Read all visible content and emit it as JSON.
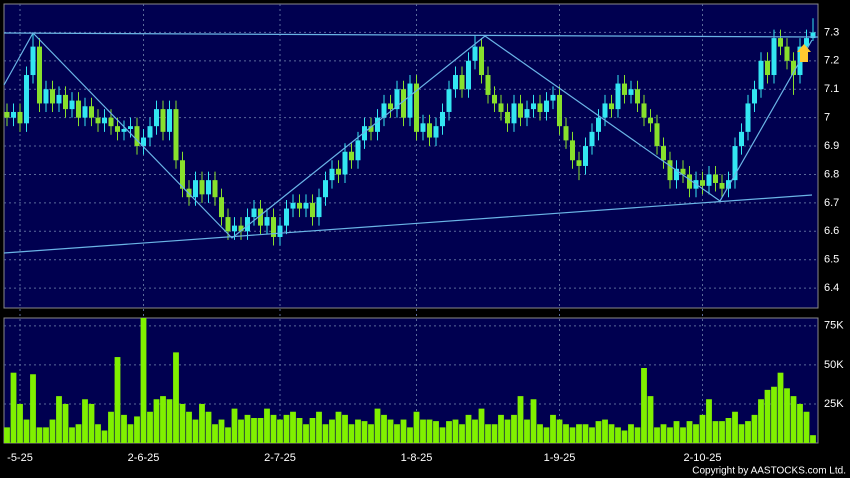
{
  "chart_data": [
    {
      "type": "candlestick",
      "categories": [
        null,
        null,
        "-5-25",
        null,
        null,
        null,
        null,
        null,
        null,
        null,
        null,
        null,
        null,
        null,
        null,
        null,
        null,
        null,
        null,
        null,
        null,
        "2-6-25",
        null,
        null,
        null,
        null,
        null,
        null,
        null,
        null,
        null,
        null,
        null,
        null,
        null,
        null,
        null,
        null,
        null,
        null,
        null,
        null,
        "2-7-25",
        null,
        null,
        null,
        null,
        null,
        null,
        null,
        null,
        null,
        null,
        null,
        null,
        null,
        null,
        null,
        null,
        null,
        null,
        null,
        null,
        "1-8-25",
        null,
        null,
        null,
        null,
        null,
        null,
        null,
        null,
        null,
        null,
        null,
        null,
        null,
        null,
        null,
        null,
        null,
        null,
        null,
        null,
        null,
        "1-9-25",
        null,
        null,
        null,
        null,
        null,
        null,
        null,
        null,
        null,
        null,
        null,
        null,
        null,
        null,
        null,
        null,
        null,
        null,
        null,
        null,
        null,
        "2-10-25",
        null,
        null,
        null,
        null,
        null,
        null,
        null,
        null,
        null,
        null,
        null,
        null,
        null,
        null,
        null,
        null,
        null
      ],
      "open": [
        7.02,
        7.0,
        7.02,
        6.98,
        7.15,
        7.25,
        7.05,
        7.1,
        7.05,
        7.08,
        7.03,
        7.06,
        7.0,
        7.04,
        7.0,
        6.98,
        7.0,
        6.97,
        6.95,
        6.96,
        6.97,
        6.9,
        6.93,
        6.97,
        7.03,
        6.95,
        7.03,
        6.85,
        6.75,
        6.72,
        6.78,
        6.73,
        6.78,
        6.72,
        6.65,
        6.6,
        6.62,
        6.6,
        6.65,
        6.68,
        6.62,
        6.65,
        6.58,
        6.62,
        6.68,
        6.7,
        6.68,
        6.7,
        6.65,
        6.72,
        6.78,
        6.82,
        6.8,
        6.88,
        6.85,
        6.92,
        6.97,
        6.95,
        7.0,
        7.05,
        7.03,
        7.1,
        7.0,
        7.12,
        6.95,
        6.98,
        6.93,
        6.97,
        7.02,
        7.1,
        7.15,
        7.1,
        7.2,
        7.25,
        7.15,
        7.08,
        7.05,
        7.02,
        6.98,
        7.05,
        7.0,
        7.03,
        7.05,
        7.02,
        7.06,
        7.08,
        6.97,
        6.92,
        6.85,
        6.83,
        6.9,
        6.95,
        7.0,
        7.05,
        7.03,
        7.12,
        7.08,
        7.1,
        7.05,
        7.0,
        6.98,
        6.9,
        6.85,
        6.78,
        6.82,
        6.8,
        6.75,
        6.78,
        6.76,
        6.8,
        6.77,
        6.75,
        6.78,
        6.9,
        6.95,
        7.05,
        7.1,
        7.2,
        7.15,
        7.28,
        7.25,
        7.2,
        7.15,
        7.25,
        7.28
      ],
      "high": [
        7.05,
        7.05,
        7.05,
        7.18,
        7.3,
        7.28,
        7.13,
        7.13,
        7.11,
        7.11,
        7.09,
        7.09,
        7.07,
        7.07,
        7.03,
        7.03,
        7.03,
        7.0,
        6.99,
        7.0,
        7.0,
        6.96,
        7.0,
        7.06,
        7.06,
        7.06,
        7.06,
        6.88,
        6.78,
        6.81,
        6.81,
        6.81,
        6.81,
        6.75,
        6.68,
        6.65,
        6.65,
        6.68,
        6.71,
        6.71,
        6.68,
        6.68,
        6.65,
        6.71,
        6.73,
        6.73,
        6.73,
        6.73,
        6.75,
        6.81,
        6.85,
        6.85,
        6.91,
        6.91,
        6.95,
        7.0,
        7.0,
        7.03,
        7.08,
        7.08,
        7.13,
        7.13,
        7.15,
        7.15,
        7.01,
        7.01,
        7.0,
        7.05,
        7.13,
        7.18,
        7.18,
        7.23,
        7.29,
        7.28,
        7.18,
        7.11,
        7.08,
        7.05,
        7.08,
        7.08,
        7.06,
        7.08,
        7.08,
        7.09,
        7.11,
        7.11,
        7.0,
        6.95,
        6.88,
        6.93,
        6.98,
        7.03,
        7.08,
        7.08,
        7.15,
        7.15,
        7.13,
        7.13,
        7.08,
        7.03,
        7.01,
        6.93,
        6.88,
        6.85,
        6.85,
        6.83,
        6.81,
        6.81,
        6.83,
        6.83,
        6.8,
        6.81,
        6.93,
        6.98,
        7.08,
        7.13,
        7.23,
        7.23,
        7.31,
        7.31,
        7.28,
        7.23,
        7.28,
        7.31,
        7.35
      ],
      "low": [
        6.97,
        6.97,
        6.95,
        6.95,
        7.12,
        7.02,
        7.02,
        7.02,
        7.02,
        7.0,
        7.0,
        6.97,
        6.97,
        6.97,
        6.95,
        6.95,
        6.94,
        6.92,
        6.92,
        6.93,
        6.87,
        6.87,
        6.9,
        6.94,
        6.92,
        6.92,
        6.82,
        6.72,
        6.69,
        6.69,
        6.7,
        6.7,
        6.69,
        6.62,
        6.57,
        6.57,
        6.57,
        6.57,
        6.62,
        6.59,
        6.59,
        6.55,
        6.55,
        6.59,
        6.65,
        6.65,
        6.65,
        6.62,
        6.62,
        6.69,
        6.75,
        6.77,
        6.77,
        6.82,
        6.82,
        6.89,
        6.92,
        6.92,
        6.97,
        7.0,
        7.0,
        6.97,
        6.97,
        6.92,
        6.92,
        6.9,
        6.9,
        6.94,
        6.99,
        7.07,
        7.07,
        7.07,
        7.17,
        7.12,
        7.05,
        7.02,
        6.99,
        6.95,
        6.95,
        6.97,
        6.97,
        7.0,
        6.99,
        6.99,
        7.03,
        6.94,
        6.89,
        6.82,
        6.78,
        6.8,
        6.87,
        6.92,
        6.97,
        7.0,
        7.0,
        7.05,
        7.05,
        7.02,
        6.97,
        6.95,
        6.87,
        6.82,
        6.75,
        6.75,
        6.77,
        6.72,
        6.72,
        6.73,
        6.73,
        6.74,
        6.72,
        6.72,
        6.75,
        6.87,
        6.92,
        7.02,
        7.07,
        7.12,
        7.12,
        7.22,
        7.17,
        7.08,
        7.12,
        7.22,
        7.27
      ],
      "close": [
        7.0,
        7.02,
        6.98,
        7.15,
        7.25,
        7.05,
        7.1,
        7.05,
        7.08,
        7.03,
        7.06,
        7.0,
        7.04,
        7.0,
        6.98,
        7.0,
        6.97,
        6.95,
        6.96,
        6.97,
        6.9,
        6.93,
        6.97,
        7.03,
        6.95,
        7.03,
        6.85,
        6.75,
        6.72,
        6.78,
        6.73,
        6.78,
        6.72,
        6.65,
        6.6,
        6.62,
        6.6,
        6.65,
        6.68,
        6.62,
        6.65,
        6.58,
        6.62,
        6.68,
        6.7,
        6.68,
        6.7,
        6.65,
        6.72,
        6.78,
        6.82,
        6.8,
        6.88,
        6.85,
        6.92,
        6.97,
        6.95,
        7.0,
        7.05,
        7.03,
        7.1,
        7.0,
        7.12,
        6.95,
        6.98,
        6.93,
        6.97,
        7.02,
        7.1,
        7.15,
        7.1,
        7.2,
        7.25,
        7.15,
        7.08,
        7.05,
        7.02,
        6.98,
        7.05,
        7.0,
        7.03,
        7.05,
        7.02,
        7.06,
        7.08,
        6.97,
        6.92,
        6.85,
        6.83,
        6.9,
        6.95,
        7.0,
        7.05,
        7.03,
        7.12,
        7.08,
        7.1,
        7.05,
        7.0,
        6.98,
        6.9,
        6.85,
        6.78,
        6.82,
        6.8,
        6.75,
        6.78,
        6.76,
        6.8,
        6.77,
        6.75,
        6.78,
        6.9,
        6.95,
        7.05,
        7.1,
        7.2,
        7.15,
        7.28,
        7.25,
        7.2,
        7.15,
        7.25,
        7.28,
        7.3
      ],
      "up_color": "#33e6f2",
      "down_color": "#88e02c",
      "ylim": [
        6.33,
        7.4
      ],
      "yticks": [
        6.4,
        6.5,
        6.6,
        6.7,
        6.8,
        6.9,
        7,
        7.1,
        7.2,
        7.3
      ],
      "grid": true
    },
    {
      "type": "bar",
      "values": [
        10000,
        45000,
        25000,
        15000,
        44000,
        10000,
        10000,
        15000,
        30000,
        25000,
        10000,
        12000,
        28000,
        25000,
        12000,
        8000,
        20000,
        55000,
        18000,
        12000,
        17000,
        80000,
        20000,
        28000,
        30000,
        28000,
        58000,
        25000,
        20000,
        15000,
        25000,
        20000,
        12000,
        15000,
        10000,
        22000,
        15000,
        18000,
        16000,
        16000,
        22000,
        18000,
        15000,
        18000,
        20000,
        16000,
        12000,
        16000,
        20000,
        12000,
        15000,
        20000,
        18000,
        12000,
        15000,
        14000,
        12000,
        22000,
        18000,
        15000,
        12000,
        15000,
        10000,
        20000,
        15000,
        15000,
        14000,
        10000,
        14000,
        15000,
        12000,
        18000,
        15000,
        22000,
        12000,
        12000,
        18000,
        15000,
        18000,
        30000,
        15000,
        28000,
        12000,
        10000,
        18000,
        15000,
        12000,
        10000,
        12000,
        12000,
        10000,
        14000,
        15000,
        12000,
        10000,
        8000,
        12000,
        10000,
        48000,
        30000,
        10000,
        12000,
        10000,
        14000,
        10000,
        14000,
        12000,
        18000,
        28000,
        14000,
        14000,
        16000,
        20000,
        12000,
        14000,
        18000,
        28000,
        34000,
        36000,
        45000,
        35000,
        30000,
        25000,
        20000,
        5000
      ],
      "color": "#80f000",
      "ylim": [
        0,
        80000
      ],
      "yticks": [
        {
          "value": 25000,
          "label": "25K"
        },
        {
          "value": 50000,
          "label": "50K"
        },
        {
          "value": 75000,
          "label": "75K"
        }
      ],
      "annotation": "Copyright by AASTOCKS.com Ltd."
    }
  ]
}
